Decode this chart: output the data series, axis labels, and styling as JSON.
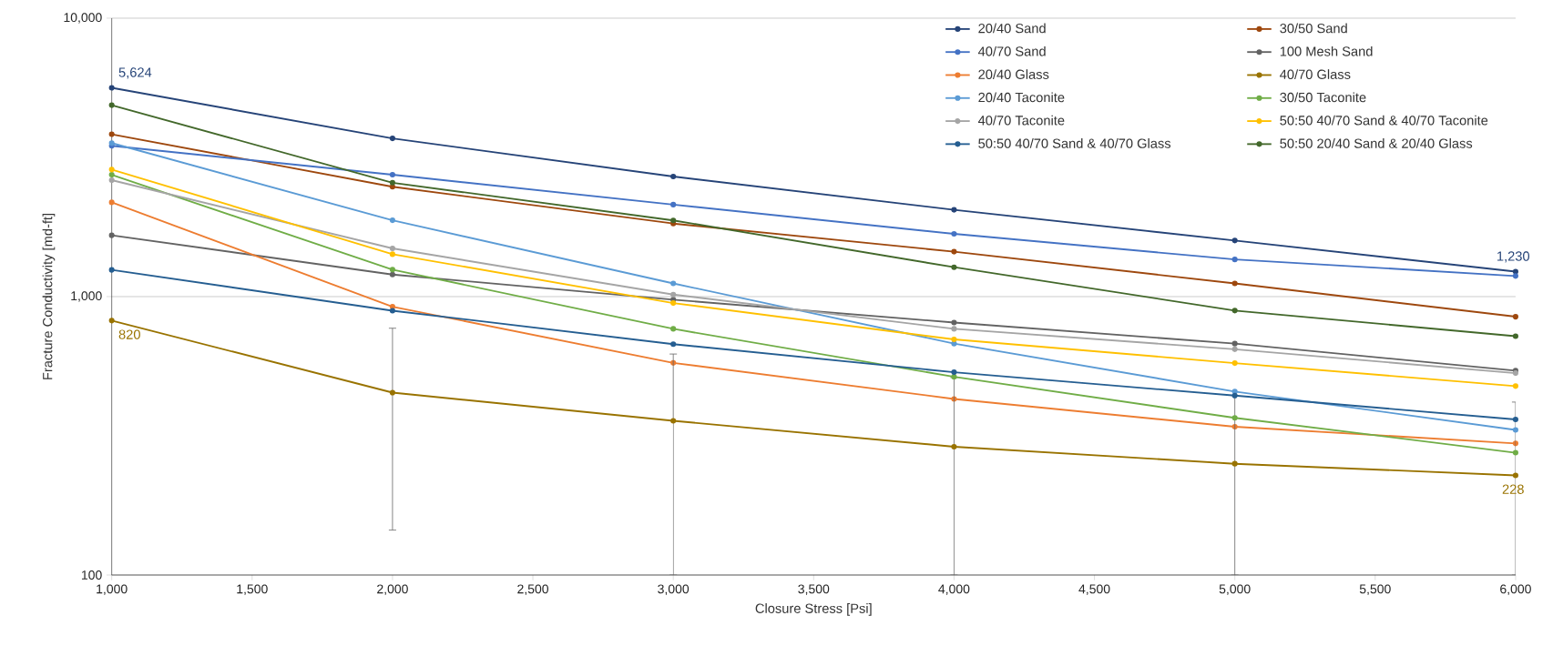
{
  "chart_data": {
    "type": "line",
    "xlabel": "Closure Stress [Psi]",
    "ylabel": "Fracture Conductivity [md-ft]",
    "x": [
      1000,
      2000,
      3000,
      4000,
      5000,
      6000
    ],
    "xlim": [
      1000,
      6000
    ],
    "xticks": [
      {
        "value": 1000,
        "label": "1,000"
      },
      {
        "value": 1500,
        "label": "1,500"
      },
      {
        "value": 2000,
        "label": "2,000"
      },
      {
        "value": 2500,
        "label": "2,500"
      },
      {
        "value": 3000,
        "label": "3,000"
      },
      {
        "value": 3500,
        "label": "3,500"
      },
      {
        "value": 4000,
        "label": "4,000"
      },
      {
        "value": 4500,
        "label": "4,500"
      },
      {
        "value": 5000,
        "label": "5,000"
      },
      {
        "value": 5500,
        "label": "5,500"
      },
      {
        "value": 6000,
        "label": "6,000"
      }
    ],
    "ylim": [
      100,
      10000
    ],
    "yticks": [
      {
        "value": 100,
        "label": "100"
      },
      {
        "value": 1000,
        "label": "1,000"
      },
      {
        "value": 10000,
        "label": "10,000"
      }
    ],
    "log": "y",
    "grid": "y",
    "legend": "top right",
    "marker": "circle",
    "line_style": "solid",
    "series": [
      {
        "name": "20/40 Sand",
        "color": "#264478",
        "values": [
          5624,
          3700,
          2700,
          2050,
          1590,
          1230
        ],
        "value_labels": [
          "5,624",
          null,
          null,
          null,
          null,
          "1,230"
        ]
      },
      {
        "name": "30/50 Sand",
        "color": "#9e480e",
        "values": [
          3830,
          2480,
          1830,
          1450,
          1115,
          847
        ]
      },
      {
        "name": "40/70 Sand",
        "color": "#4472c4",
        "values": [
          3480,
          2740,
          2140,
          1680,
          1360,
          1186
        ]
      },
      {
        "name": "100 Mesh  Sand",
        "color": "#636363",
        "values": [
          1660,
          1200,
          975,
          807,
          678,
          542
        ]
      },
      {
        "name": "20/40 Glass",
        "color": "#ed7d31",
        "values": [
          2180,
          920,
          578,
          429,
          341,
          297
        ]
      },
      {
        "name": "40/70 Glass",
        "color": "#997300",
        "values": [
          820,
          452,
          358,
          289,
          251,
          228
        ],
        "value_labels": [
          "820",
          null,
          null,
          null,
          null,
          "228"
        ],
        "errors": [
          null,
          [
            145,
            770
          ],
          [
            100,
            622
          ],
          [
            100,
            512
          ],
          [
            100,
            441
          ],
          [
            100,
            418
          ]
        ]
      },
      {
        "name": "20/40 Taconite",
        "color": "#5b9bd5",
        "values": [
          3560,
          1880,
          1115,
          678,
          456,
          332
        ]
      },
      {
        "name": "30/50 Taconite",
        "color": "#70ad47",
        "values": [
          2740,
          1250,
          766,
          515,
          367,
          275
        ]
      },
      {
        "name": "40/70 Taconite",
        "color": "#a5a5a5",
        "values": [
          2620,
          1490,
          1017,
          766,
          647,
          531
        ]
      },
      {
        "name": "50:50 40/70 Sand & 40/70 Taconite",
        "color": "#ffc000",
        "values": [
          2860,
          1420,
          948,
          702,
          577,
          477
        ]
      },
      {
        "name": "50:50 40/70 Sand & 40/70 Glass",
        "color": "#255e91",
        "values": [
          1247,
          890,
          675,
          535,
          441,
          362
        ]
      },
      {
        "name": "50:50 20/40 Sand & 20/40 Glass",
        "color": "#43682b",
        "values": [
          4870,
          2565,
          1878,
          1275,
          891,
          721
        ]
      }
    ]
  }
}
